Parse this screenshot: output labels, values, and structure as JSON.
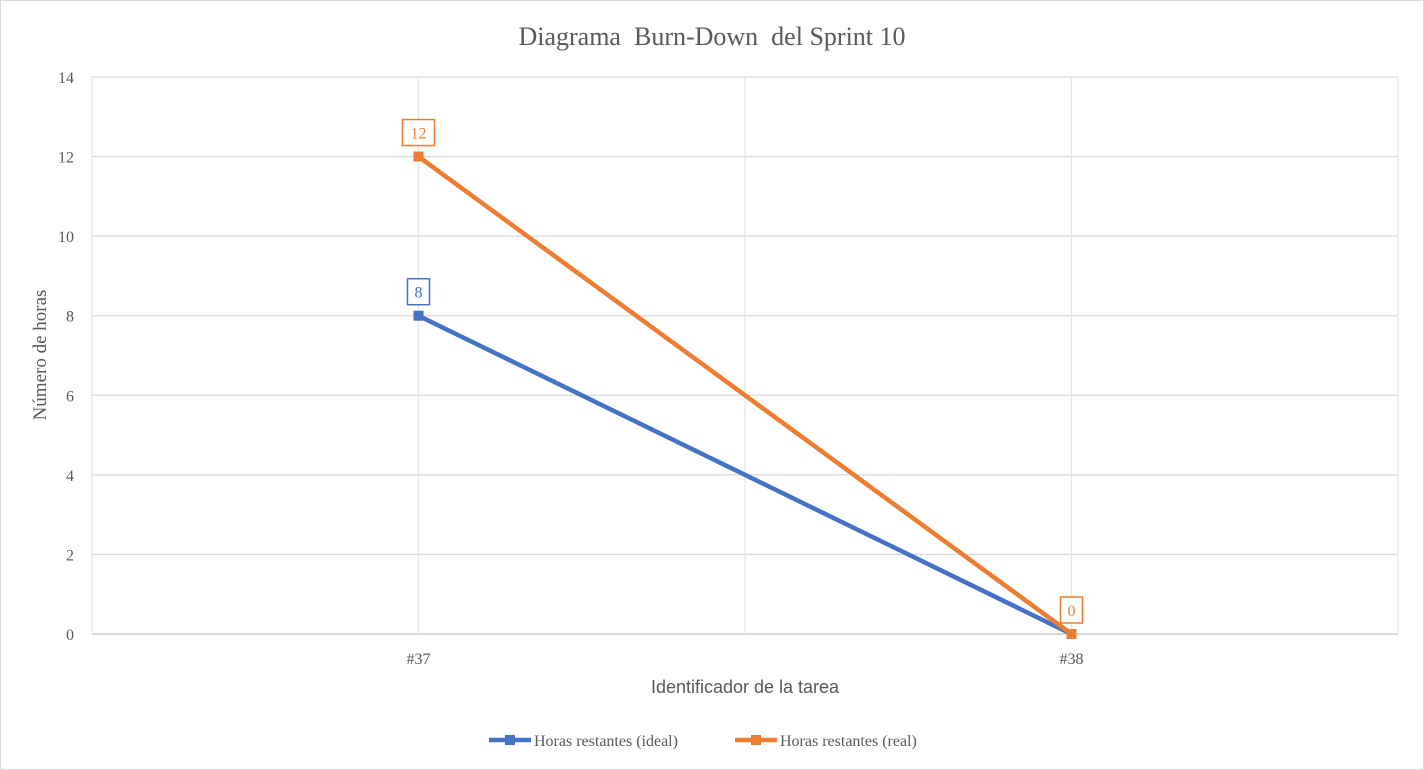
{
  "chart_data": {
    "type": "line",
    "title": "Diagrama  Burn-Down  del Sprint 10",
    "xlabel": "Identificador de la tarea",
    "ylabel": "Número de horas",
    "categories": [
      "#37",
      "#38"
    ],
    "ylim": [
      0,
      14
    ],
    "yticks": [
      "0",
      "2",
      "4",
      "6",
      "8",
      "10",
      "12",
      "14"
    ],
    "grid": true,
    "legend_position": "bottom",
    "series": [
      {
        "name": "Horas restantes (ideal)",
        "values": [
          8,
          0
        ],
        "color": "#4472C4",
        "data_labels": [
          "8",
          ""
        ]
      },
      {
        "name": "Horas restantes (real)",
        "values": [
          12,
          0
        ],
        "color": "#ED7D31",
        "data_labels": [
          "12",
          "0"
        ]
      }
    ]
  }
}
